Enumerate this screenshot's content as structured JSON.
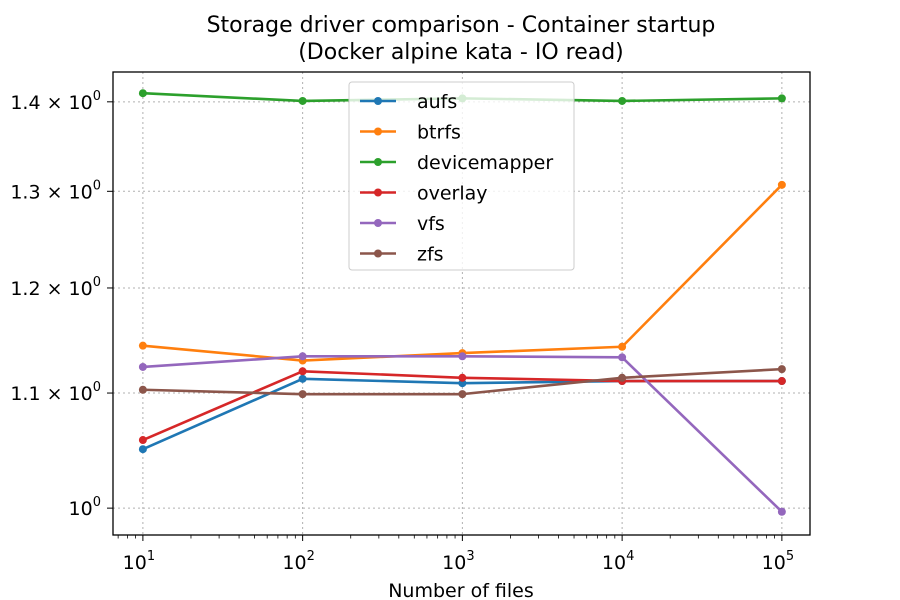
{
  "chart_data": {
    "type": "line",
    "title": "Storage driver comparison - Container startup",
    "subtitle": "(Docker alpine kata - IO read)",
    "xlabel": "Number of files",
    "ylabel": "",
    "xscale": "log",
    "yscale": "log",
    "x": [
      10,
      100,
      1000,
      10000,
      100000
    ],
    "xticks": [
      {
        "value": 10,
        "base": "10",
        "exp": "1"
      },
      {
        "value": 100,
        "base": "10",
        "exp": "2"
      },
      {
        "value": 1000,
        "base": "10",
        "exp": "3"
      },
      {
        "value": 10000,
        "base": "10",
        "exp": "4"
      },
      {
        "value": 100000,
        "base": "10",
        "exp": "5"
      }
    ],
    "yticks": [
      {
        "value": 1.0,
        "mantissa": "",
        "base": "10",
        "exp": "0"
      },
      {
        "value": 1.1,
        "mantissa": "1.1",
        "base": "10",
        "exp": "0"
      },
      {
        "value": 1.2,
        "mantissa": "1.2",
        "base": "10",
        "exp": "0"
      },
      {
        "value": 1.3,
        "mantissa": "1.3",
        "base": "10",
        "exp": "0"
      },
      {
        "value": 1.4,
        "mantissa": "1.4",
        "base": "10",
        "exp": "0"
      }
    ],
    "xlim": [
      6.5,
      150000
    ],
    "ylim": [
      0.978,
      1.435
    ],
    "grid": true,
    "legend_position": "top-center",
    "series": [
      {
        "name": "aufs",
        "color": "#1f77b4",
        "values": [
          1.05,
          1.113,
          1.109,
          1.111,
          1.111
        ]
      },
      {
        "name": "btrfs",
        "color": "#ff7f0e",
        "values": [
          1.144,
          1.13,
          1.137,
          1.143,
          1.307
        ]
      },
      {
        "name": "devicemapper",
        "color": "#2ca02c",
        "values": [
          1.41,
          1.401,
          1.404,
          1.401,
          1.404
        ]
      },
      {
        "name": "overlay",
        "color": "#d62728",
        "values": [
          1.058,
          1.12,
          1.114,
          1.111,
          1.111
        ]
      },
      {
        "name": "vfs",
        "color": "#9467bd",
        "values": [
          1.124,
          1.134,
          1.134,
          1.133,
          0.997
        ]
      },
      {
        "name": "zfs",
        "color": "#8c564b",
        "values": [
          1.103,
          1.099,
          1.099,
          1.114,
          1.122
        ]
      }
    ]
  }
}
